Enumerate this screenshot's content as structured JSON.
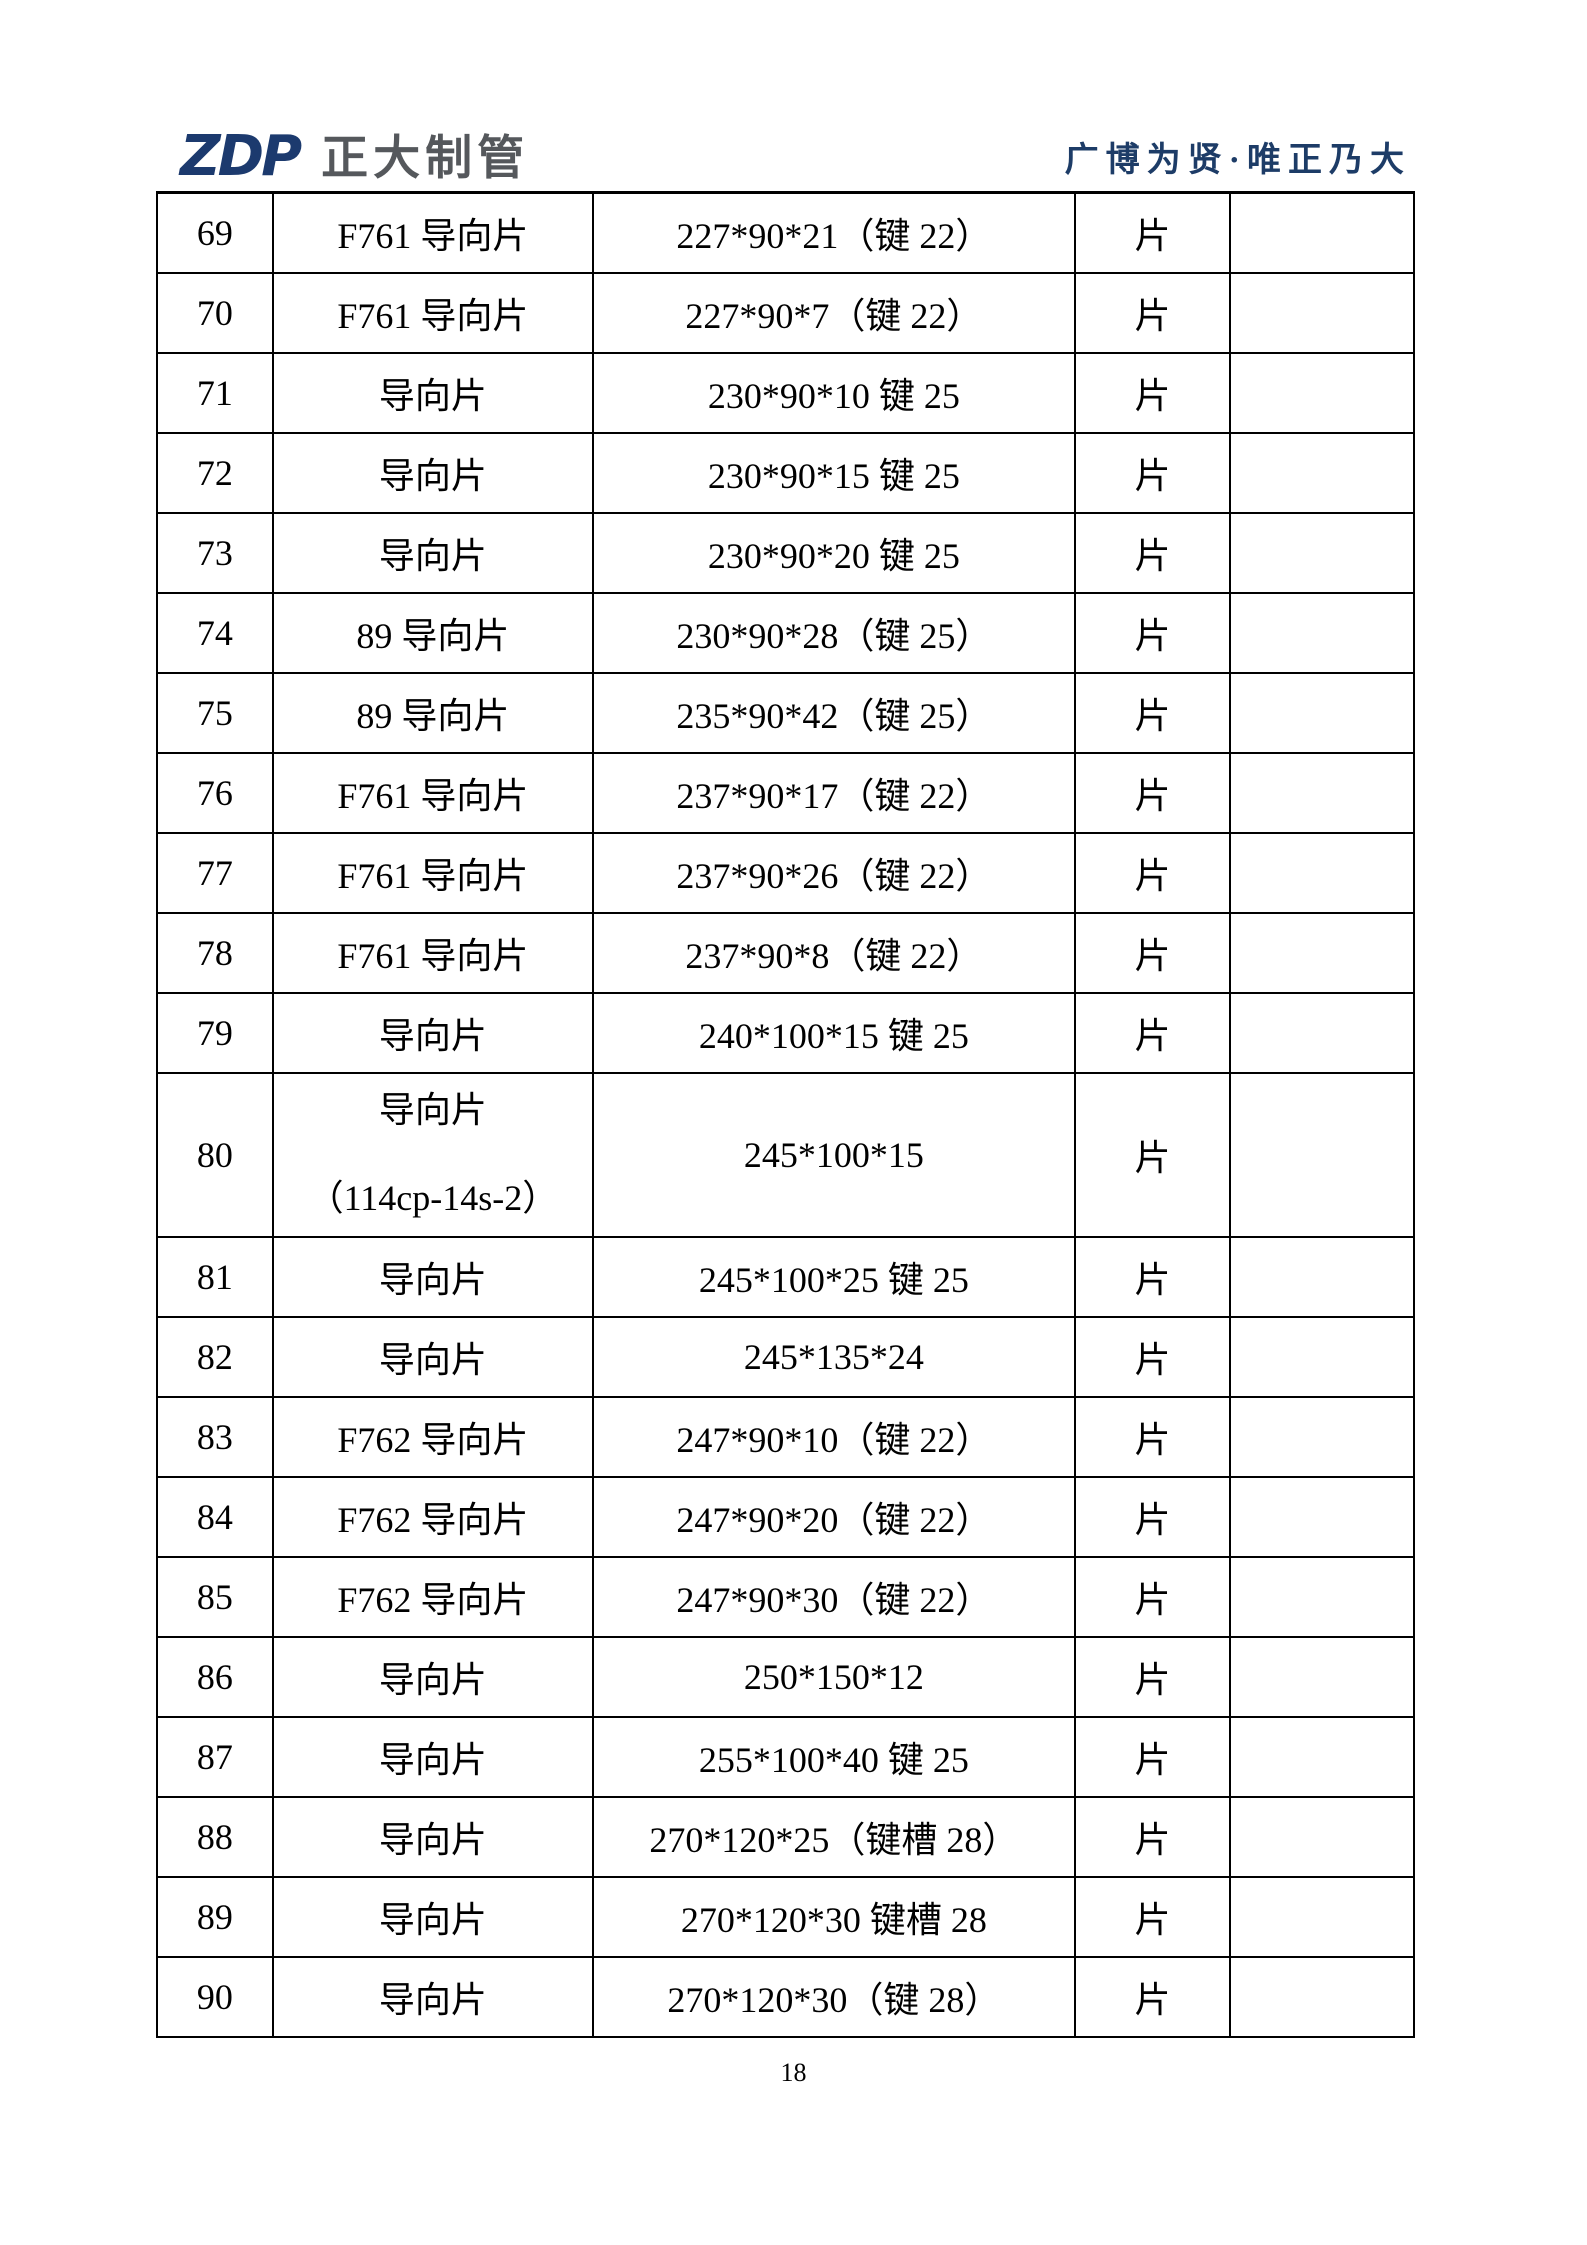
{
  "header": {
    "logo_text": "ZDP",
    "company_name": "正大制管",
    "motto": "广博为贤·唯正乃大"
  },
  "table": {
    "rows": [
      {
        "no": "69",
        "name": "F761 导向片",
        "spec": "227*90*21（键 22）",
        "unit": "片"
      },
      {
        "no": "70",
        "name": "F761 导向片",
        "spec": "227*90*7（键 22）",
        "unit": "片"
      },
      {
        "no": "71",
        "name": "导向片",
        "spec": "230*90*10 键 25",
        "unit": "片"
      },
      {
        "no": "72",
        "name": "导向片",
        "spec": "230*90*15 键 25",
        "unit": "片"
      },
      {
        "no": "73",
        "name": "导向片",
        "spec": "230*90*20 键 25",
        "unit": "片"
      },
      {
        "no": "74",
        "name": "89 导向片",
        "spec": "230*90*28（键 25）",
        "unit": "片"
      },
      {
        "no": "75",
        "name": "89 导向片",
        "spec": "235*90*42（键 25）",
        "unit": "片"
      },
      {
        "no": "76",
        "name": "F761 导向片",
        "spec": "237*90*17（键 22）",
        "unit": "片"
      },
      {
        "no": "77",
        "name": "F761 导向片",
        "spec": "237*90*26（键 22）",
        "unit": "片"
      },
      {
        "no": "78",
        "name": "F761 导向片",
        "spec": "237*90*8（键 22）",
        "unit": "片"
      },
      {
        "no": "79",
        "name": "导向片",
        "spec": "240*100*15 键 25",
        "unit": "片"
      },
      {
        "no": "80",
        "name": "导向片",
        "name2": "（114cp-14s-2）",
        "spec": "245*100*15",
        "unit": "片"
      },
      {
        "no": "81",
        "name": "导向片",
        "spec": "245*100*25 键 25",
        "unit": "片"
      },
      {
        "no": "82",
        "name": "导向片",
        "spec": "245*135*24",
        "unit": "片"
      },
      {
        "no": "83",
        "name": "F762 导向片",
        "spec": "247*90*10（键 22）",
        "unit": "片"
      },
      {
        "no": "84",
        "name": "F762 导向片",
        "spec": "247*90*20（键 22）",
        "unit": "片"
      },
      {
        "no": "85",
        "name": "F762 导向片",
        "spec": "247*90*30（键 22）",
        "unit": "片"
      },
      {
        "no": "86",
        "name": "导向片",
        "spec": "250*150*12",
        "unit": "片"
      },
      {
        "no": "87",
        "name": "导向片",
        "spec": "255*100*40 键 25",
        "unit": "片"
      },
      {
        "no": "88",
        "name": "导向片",
        "spec": "270*120*25（键槽 28）",
        "unit": "片"
      },
      {
        "no": "89",
        "name": "导向片",
        "spec": "270*120*30 键槽 28",
        "unit": "片"
      },
      {
        "no": "90",
        "name": "导向片",
        "spec": "270*120*30（键 28）",
        "unit": "片"
      }
    ]
  },
  "footer": {
    "page_number": "18"
  }
}
